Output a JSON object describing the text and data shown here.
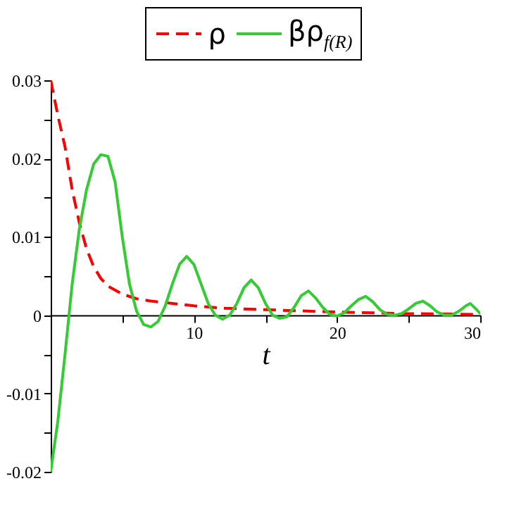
{
  "chart_data": {
    "type": "line",
    "xlabel": "t",
    "legend": "top",
    "xlim": [
      0,
      30
    ],
    "ylim": [
      -0.02,
      0.03
    ],
    "xticks": [
      {
        "value": 5,
        "label": null
      },
      10,
      {
        "value": 15,
        "label": null
      },
      20,
      {
        "value": 25,
        "label": null
      },
      30
    ],
    "yticks": [
      -0.02,
      {
        "value": -0.015,
        "label": null
      },
      -0.01,
      {
        "value": -0.005,
        "label": null
      },
      0,
      {
        "value": 0.005,
        "label": null
      },
      0.01,
      {
        "value": 0.015,
        "label": null
      },
      0.02,
      {
        "value": 0.025,
        "label": null
      },
      0.03
    ],
    "series": [
      {
        "name": "ρ",
        "color": "#ff0000",
        "line_style": "dashed",
        "x": [
          0,
          0.5,
          1,
          1.5,
          2,
          2.5,
          3,
          3.5,
          4,
          5,
          6,
          7,
          8,
          10,
          12,
          15,
          20,
          25,
          30
        ],
        "values": [
          0.03,
          0.0255,
          0.0215,
          0.016,
          0.0118,
          0.0085,
          0.0062,
          0.0047,
          0.0037,
          0.0027,
          0.0021,
          0.0018,
          0.0016,
          0.0012,
          0.0009,
          0.0007,
          0.0004,
          0.0002,
          0.0001
        ]
      },
      {
        "name": "βρ$_{f(R)}$",
        "color": "#33cc33",
        "line_style": "solid",
        "x": [
          0,
          0.5,
          1,
          1.5,
          2,
          2.5,
          3,
          3.5,
          4,
          4.5,
          5,
          5.5,
          6,
          6.5,
          7,
          7.5,
          8,
          8.5,
          9,
          9.5,
          10,
          10.5,
          11,
          11.5,
          12,
          12.5,
          13,
          13.5,
          14,
          14.5,
          15,
          15.5,
          16,
          16.5,
          17,
          17.5,
          18,
          18.5,
          19,
          19.5,
          20,
          20.5,
          21,
          21.5,
          22,
          22.5,
          23,
          23.5,
          24,
          24.5,
          25,
          25.5,
          26,
          26.5,
          27,
          27.5,
          28,
          28.5,
          29,
          29.3,
          29.7,
          30
        ],
        "values": [
          -0.02,
          -0.0135,
          -0.005,
          0.004,
          0.011,
          0.016,
          0.0193,
          0.0205,
          0.0203,
          0.017,
          0.01,
          0.004,
          0.0005,
          -0.0012,
          -0.0015,
          -0.0008,
          0.0012,
          0.004,
          0.0065,
          0.0075,
          0.0065,
          0.004,
          0.0015,
          0,
          -0.0005,
          0,
          0.0015,
          0.0035,
          0.0045,
          0.0035,
          0.0015,
          0,
          -0.0004,
          -0.0002,
          0.001,
          0.0025,
          0.0031,
          0.0022,
          0.001,
          0.0001,
          -0.0001,
          0.0003,
          0.0012,
          0.002,
          0.0024,
          0.0017,
          0.0007,
          0.0001,
          0,
          0.0002,
          0.0008,
          0.0015,
          0.0018,
          0.0012,
          0.0004,
          0,
          0,
          0.0005,
          0.0012,
          0.0015,
          0.0008,
          0.0002
        ]
      }
    ]
  }
}
